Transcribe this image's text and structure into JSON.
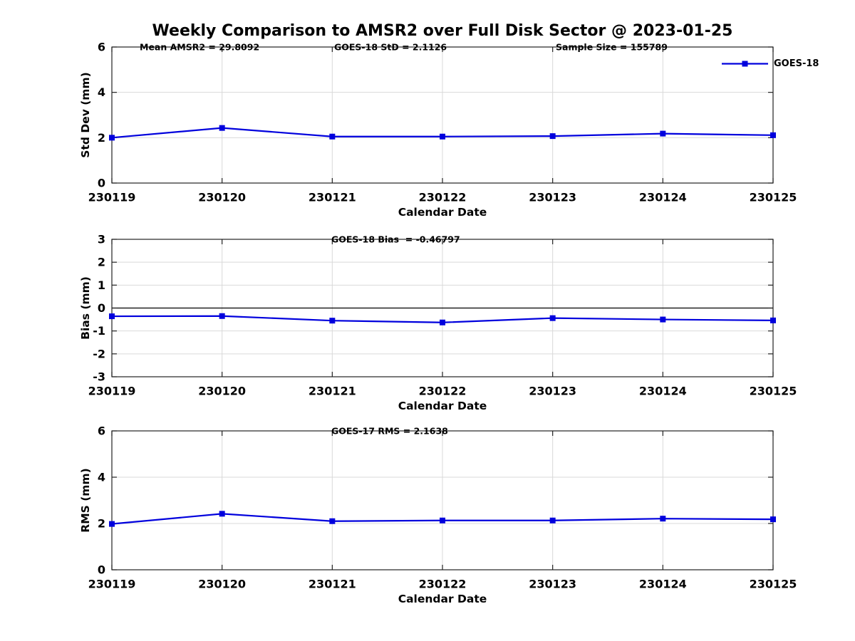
{
  "title": "Weekly Comparison to AMSR2 over Full Disk Sector @ 2023-01-25",
  "colors": {
    "series": "#0000dd",
    "grid": "#d9d9d9",
    "axis": "#222222",
    "zero_line": "#000000",
    "text": "#000000",
    "background": "#ffffff"
  },
  "legend": {
    "label": "GOES-18",
    "position": "top-right-outside"
  },
  "chart_data": [
    {
      "type": "line",
      "name": "std-dev",
      "title": "",
      "xlabel": "Calendar Date",
      "ylabel": "Std Dev (mm)",
      "ylim": [
        0,
        6
      ],
      "yticks": [
        0,
        2,
        4,
        6
      ],
      "grid": true,
      "categories": [
        "230119",
        "230120",
        "230121",
        "230122",
        "230123",
        "230124",
        "230125"
      ],
      "series": [
        {
          "name": "GOES-18",
          "values": [
            2.0,
            2.43,
            2.05,
            2.05,
            2.07,
            2.18,
            2.11
          ]
        }
      ],
      "annotations": [
        "Mean AMSR2 = 29.8092",
        "GOES-18 StD = 2.1126",
        "Sample Size = 155789"
      ],
      "legend": "GOES-18"
    },
    {
      "type": "line",
      "name": "bias",
      "title": "",
      "xlabel": "Calendar Date",
      "ylabel": "Bias (mm)",
      "ylim": [
        -3,
        3
      ],
      "yticks": [
        3,
        2,
        1,
        0,
        -1,
        -2,
        -3
      ],
      "grid": true,
      "zero_line": true,
      "categories": [
        "230119",
        "230120",
        "230121",
        "230122",
        "230123",
        "230124",
        "230125"
      ],
      "series": [
        {
          "name": "GOES-18",
          "values": [
            -0.36,
            -0.35,
            -0.55,
            -0.63,
            -0.44,
            -0.5,
            -0.54
          ]
        }
      ],
      "annotations": [
        "GOES-18 Bias  = -0.46797"
      ]
    },
    {
      "type": "line",
      "name": "rms",
      "title": "",
      "xlabel": "Calendar Date",
      "ylabel": "RMS (mm)",
      "ylim": [
        0,
        6
      ],
      "yticks": [
        0,
        2,
        4,
        6
      ],
      "grid": true,
      "categories": [
        "230119",
        "230120",
        "230121",
        "230122",
        "230123",
        "230124",
        "230125"
      ],
      "series": [
        {
          "name": "GOES-18",
          "values": [
            1.98,
            2.42,
            2.1,
            2.13,
            2.13,
            2.21,
            2.18
          ]
        }
      ],
      "annotations": [
        "GOES-17 RMS = 2.1638"
      ]
    }
  ]
}
